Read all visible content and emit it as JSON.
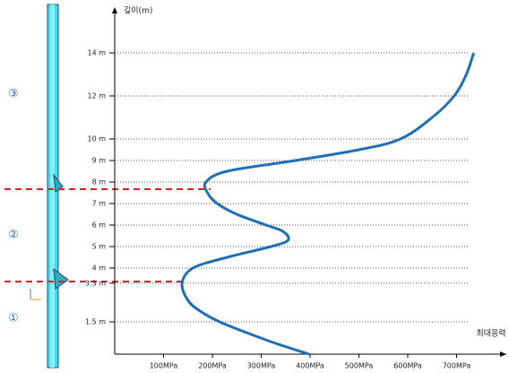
{
  "chart_data": {
    "type": "line",
    "x_label": "최대응력",
    "y_label": "깊이(m)",
    "x": [
      398,
      330,
      270,
      215,
      175,
      150,
      138,
      160,
      230,
      320,
      355,
      345,
      310,
      250,
      210,
      190,
      187,
      230,
      370,
      500,
      585,
      650,
      695,
      720,
      735
    ],
    "values": [
      0,
      0.5,
      1,
      1.5,
      2,
      2.5,
      3.3,
      4,
      4.5,
      5,
      5.3,
      5.7,
      6,
      6.5,
      7,
      7.5,
      8,
      8.5,
      9,
      9.5,
      10,
      11,
      12,
      13,
      14
    ],
    "color": "#1f6fb8",
    "xlim": [
      0,
      800
    ],
    "ylim": [
      0,
      16
    ],
    "xticks": [
      {
        "value": 100,
        "label": "100MPa"
      },
      {
        "value": 200,
        "label": "200MPa"
      },
      {
        "value": 300,
        "label": "300MPa"
      },
      {
        "value": 400,
        "label": "400MPa"
      },
      {
        "value": 500,
        "label": "500MPa"
      },
      {
        "value": 600,
        "label": "600MPa"
      },
      {
        "value": 700,
        "label": "700MPa"
      }
    ],
    "yticks": [
      {
        "value": 1.5,
        "label": "1.5 m"
      },
      {
        "value": 3.3,
        "label": "3.3 m"
      },
      {
        "value": 4,
        "label": "4 m"
      },
      {
        "value": 5,
        "label": "5 m"
      },
      {
        "value": 6,
        "label": "6 m"
      },
      {
        "value": 7,
        "label": "7 m"
      },
      {
        "value": 8,
        "label": "8 m"
      },
      {
        "value": 9,
        "label": "9 m"
      },
      {
        "value": 10,
        "label": "10 m"
      },
      {
        "value": 12,
        "label": "12 m"
      },
      {
        "value": 14,
        "label": "14 m"
      }
    ],
    "grid": true,
    "zone_labels": [
      "③",
      "②",
      "①"
    ]
  }
}
